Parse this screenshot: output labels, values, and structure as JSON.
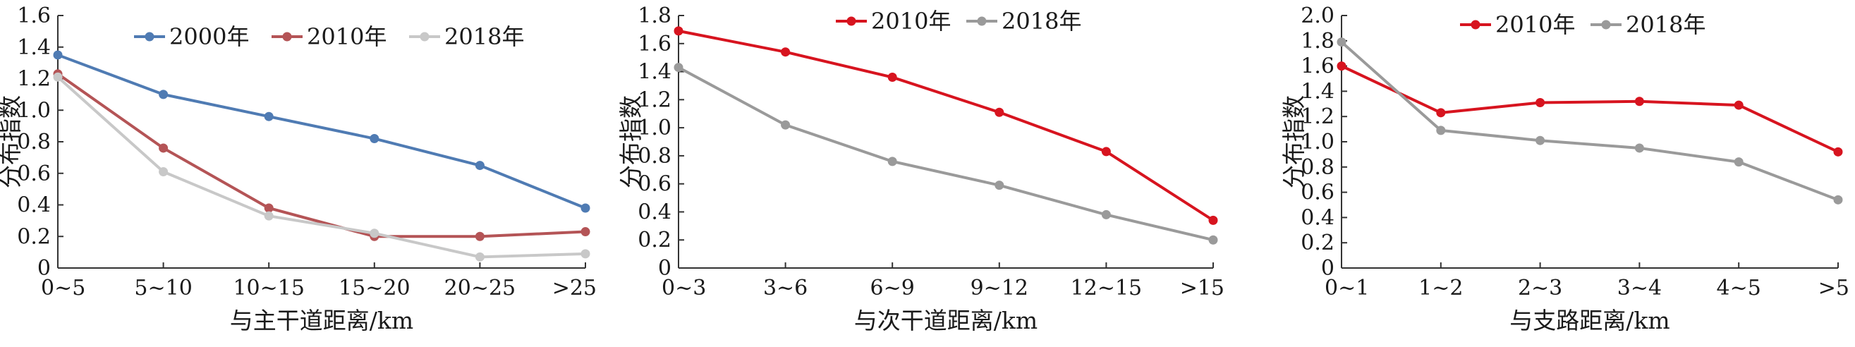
{
  "chart_data": [
    {
      "type": "line",
      "categories": [
        "0~5",
        "5~10",
        "10~15",
        "15~20",
        "20~25",
        ">25"
      ],
      "series": [
        {
          "name": "2000年",
          "values": [
            1.35,
            1.1,
            0.96,
            0.82,
            0.65,
            0.38
          ],
          "color": "#4f7bb3"
        },
        {
          "name": "2010年",
          "values": [
            1.23,
            0.76,
            0.38,
            0.2,
            0.2,
            0.23
          ],
          "color": "#b45456"
        },
        {
          "name": "2018年",
          "values": [
            1.21,
            0.61,
            0.33,
            0.22,
            0.07,
            0.09
          ],
          "color": "#c8c8c8"
        }
      ],
      "xlabel": "与主干道距离/km",
      "ylabel": "分布指数",
      "ylim": [
        0,
        1.6
      ],
      "yticks": [
        "0",
        "0.2",
        "0.4",
        "0.6",
        "0.8",
        "1.0",
        "1.2",
        "1.4",
        "1.6"
      ],
      "grid": false,
      "legend": "top"
    },
    {
      "type": "line",
      "categories": [
        "0~3",
        "3~6",
        "6~9",
        "9~12",
        "12~15",
        ">15"
      ],
      "series": [
        {
          "name": "2010年",
          "values": [
            1.69,
            1.54,
            1.36,
            1.11,
            0.83,
            0.34
          ],
          "color": "#d7141f"
        },
        {
          "name": "2018年",
          "values": [
            1.43,
            1.02,
            0.76,
            0.59,
            0.38,
            0.2
          ],
          "color": "#9a9a9a"
        }
      ],
      "xlabel": "与次干道距离/km",
      "ylabel": "分布指数",
      "ylim": [
        0,
        1.8
      ],
      "yticks": [
        "0",
        "0.2",
        "0.4",
        "0.6",
        "0.8",
        "1.0",
        "1.2",
        "1.4",
        "1.6",
        "1.8"
      ],
      "grid": false,
      "legend": "top"
    },
    {
      "type": "line",
      "categories": [
        "0~1",
        "1~2",
        "2~3",
        "3~4",
        "4~5",
        ">5"
      ],
      "series": [
        {
          "name": "2010年",
          "values": [
            1.6,
            1.23,
            1.31,
            1.32,
            1.29,
            0.92
          ],
          "color": "#d7141f"
        },
        {
          "name": "2018年",
          "values": [
            1.79,
            1.09,
            1.01,
            0.95,
            0.84,
            0.54
          ],
          "color": "#9a9a9a"
        }
      ],
      "xlabel": "与支路距离/km",
      "ylabel": "分布指数",
      "ylim": [
        0,
        2.0
      ],
      "yticks": [
        "0",
        "0.2",
        "0.4",
        "0.6",
        "0.8",
        "1.0",
        "1.2",
        "1.4",
        "1.6",
        "1.8",
        "2.0"
      ],
      "grid": false,
      "legend": "top"
    }
  ]
}
